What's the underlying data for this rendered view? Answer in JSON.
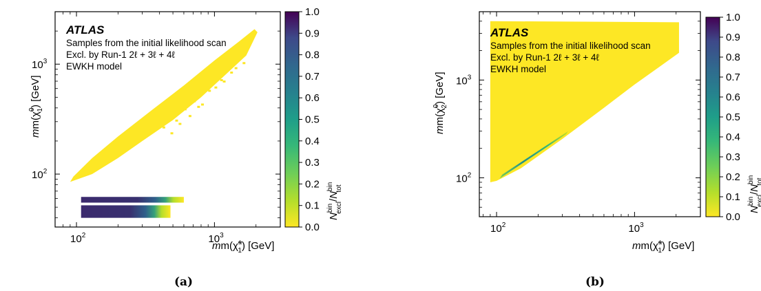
{
  "colors": {
    "yellow": "#fde725",
    "dark": "#440154",
    "navy": "#3b2a6e",
    "teal": "#21918c",
    "green": "#5ec962"
  },
  "colorbar": {
    "colormap": "viridis_r",
    "ticks": [
      "1.0",
      "0.9",
      "0.8",
      "0.7",
      "0.6",
      "0.5",
      "0.4",
      "0.3",
      "0.2",
      "0.1",
      "0.0"
    ],
    "label_main": "N",
    "label_sup_num": "bin",
    "label_sub_num": "excl",
    "label_slash": "/",
    "label_main2": "N",
    "label_sup_den": "bin",
    "label_sub_den": "tot"
  },
  "chart_data": [
    {
      "type": "heatmap",
      "panel_caption": "(a)",
      "annotations": {
        "experiment": "ATLAS",
        "line1": "Samples from the initial likelihood scan",
        "line2": "Excl. by Run-1 2ℓ + 3ℓ + 4ℓ",
        "line3": "EWKH model"
      },
      "x_scale": "log",
      "y_scale": "log",
      "xlim": [
        70,
        3000
      ],
      "ylim": [
        33,
        3000
      ],
      "x_ticks": [
        {
          "value": 100,
          "label": "10",
          "exp": "2"
        },
        {
          "value": 1000,
          "label": "10",
          "exp": "3"
        }
      ],
      "y_ticks": [
        {
          "value": 100,
          "label": "10",
          "exp": "2"
        },
        {
          "value": 1000,
          "label": "10",
          "exp": "3"
        }
      ],
      "xlabel": {
        "text": "m(χ̃",
        "sup": "±",
        "sub": "1",
        "tail": ") [GeV]"
      },
      "ylabel": {
        "text": "m(χ̃",
        "sup": "0",
        "sub": "1",
        "tail": ") [GeV]"
      },
      "zlim": [
        0,
        1
      ],
      "regions": [
        {
          "name": "triangle",
          "x": [
            90,
            2000
          ],
          "y_diag": [
            85,
            2000
          ],
          "y_floor_slope": [
            1,
            2
          ],
          "value": 0.0
        },
        {
          "name": "band-upper",
          "x": [
            108,
            600
          ],
          "y": [
            55,
            62
          ],
          "value_range": [
            0.6,
            1.0
          ]
        },
        {
          "name": "band-lower",
          "x": [
            108,
            480
          ],
          "y": [
            40,
            52
          ],
          "value_range": [
            0.6,
            1.0
          ]
        }
      ]
    },
    {
      "type": "heatmap",
      "panel_caption": "(b)",
      "annotations": {
        "experiment": "ATLAS",
        "line1": "Samples from the initial likelihood scan",
        "line2": "Excl. by Run-1 2ℓ + 3ℓ + 4ℓ",
        "line3": "EWKH model"
      },
      "x_scale": "log",
      "y_scale": "log",
      "xlim": [
        75,
        3000
      ],
      "ylim": [
        40,
        5000
      ],
      "x_ticks": [
        {
          "value": 100,
          "label": "10",
          "exp": "2"
        },
        {
          "value": 1000,
          "label": "10",
          "exp": "3"
        }
      ],
      "y_ticks": [
        {
          "value": 100,
          "label": "10",
          "exp": "2"
        },
        {
          "value": 1000,
          "label": "10",
          "exp": "3"
        }
      ],
      "xlabel": {
        "text": "m(χ̃",
        "sup": "±",
        "sub": "1",
        "tail": ") [GeV]"
      },
      "ylabel": {
        "text": "m(χ̃",
        "sup": "0",
        "sub": "2",
        "tail": ") [GeV]"
      },
      "zlim": [
        0,
        1
      ],
      "regions": [
        {
          "name": "filled-area",
          "x": [
            90,
            2100
          ],
          "y": [
            90,
            4000
          ],
          "lower_edge": "m(χ̃20) ≈ m(χ̃1±)",
          "value": 0.0
        },
        {
          "name": "diagonal-stripe",
          "x": [
            110,
            320
          ],
          "y_offset": "just above diagonal",
          "value_range": [
            0.3,
            0.7
          ]
        }
      ]
    }
  ]
}
